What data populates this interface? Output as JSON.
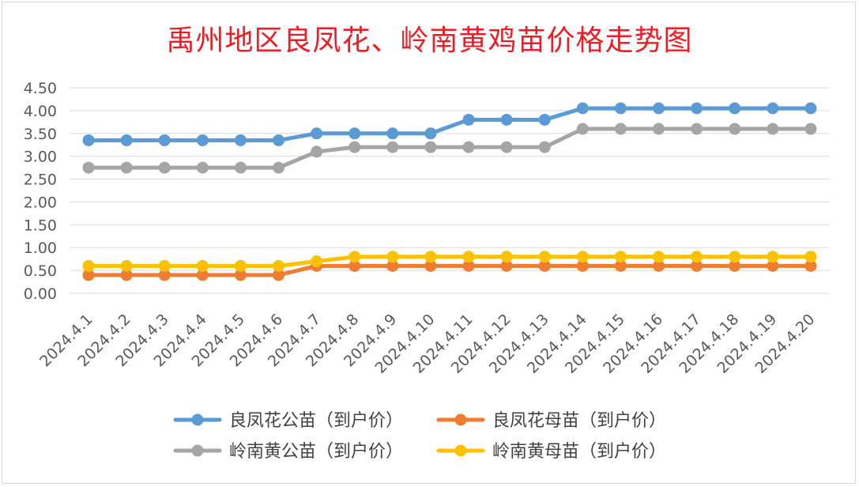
{
  "chart_data": {
    "type": "line",
    "title": "禹州地区良凤花、岭南黄鸡苗价格走势图",
    "categories": [
      "2024.4.1",
      "2024.4.2",
      "2024.4.3",
      "2024.4.4",
      "2024.4.5",
      "2024.4.6",
      "2024.4.7",
      "2024.4.8",
      "2024.4.9",
      "2024.4.10",
      "2024.4.11",
      "2024.4.12",
      "2024.4.13",
      "2024.4.14",
      "2024.4.15",
      "2024.4.16",
      "2024.4.17",
      "2024.4.18",
      "2024.4.19",
      "2024.4.20"
    ],
    "ylim": [
      0,
      4.5
    ],
    "yticks": [
      "0.00",
      "0.50",
      "1.00",
      "1.50",
      "2.00",
      "2.50",
      "3.00",
      "3.50",
      "4.00",
      "4.50"
    ],
    "grid": true,
    "legend_position": "bottom",
    "series": [
      {
        "name": "良凤花公苗（到户价）",
        "color": "#5b9bd5",
        "values": [
          3.35,
          3.35,
          3.35,
          3.35,
          3.35,
          3.35,
          3.5,
          3.5,
          3.5,
          3.5,
          3.8,
          3.8,
          3.8,
          4.05,
          4.05,
          4.05,
          4.05,
          4.05,
          4.05,
          4.05
        ]
      },
      {
        "name": "良凤花母苗（到户价）",
        "color": "#ed7d31",
        "values": [
          0.4,
          0.4,
          0.4,
          0.4,
          0.4,
          0.4,
          0.6,
          0.6,
          0.6,
          0.6,
          0.6,
          0.6,
          0.6,
          0.6,
          0.6,
          0.6,
          0.6,
          0.6,
          0.6,
          0.6
        ]
      },
      {
        "name": "岭南黄公苗（到户价）",
        "color": "#a5a5a5",
        "values": [
          2.75,
          2.75,
          2.75,
          2.75,
          2.75,
          2.75,
          3.1,
          3.2,
          3.2,
          3.2,
          3.2,
          3.2,
          3.2,
          3.6,
          3.6,
          3.6,
          3.6,
          3.6,
          3.6,
          3.6
        ]
      },
      {
        "name": "岭南黄母苗（到户价）",
        "color": "#ffc000",
        "values": [
          0.6,
          0.6,
          0.6,
          0.6,
          0.6,
          0.6,
          0.7,
          0.8,
          0.8,
          0.8,
          0.8,
          0.8,
          0.8,
          0.8,
          0.8,
          0.8,
          0.8,
          0.8,
          0.8,
          0.8
        ]
      }
    ]
  }
}
